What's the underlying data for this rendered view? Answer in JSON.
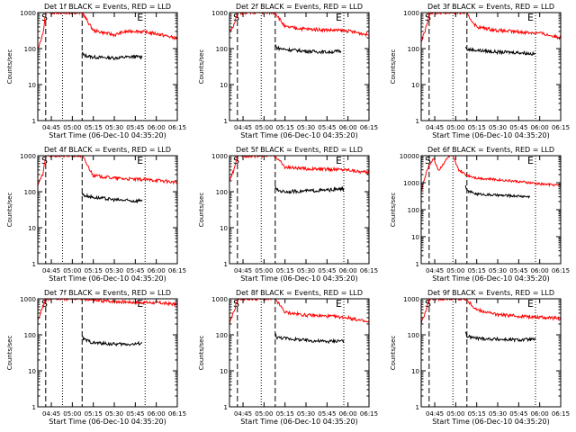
{
  "figure": {
    "xlabel": "Start Time (06-Dec-10 04:35:20)",
    "ylabel": "Counts/sec",
    "x_tick_labels": [
      "04:45",
      "05:00",
      "05:15",
      "05:30",
      "05:45",
      "06:00",
      "06:15"
    ],
    "y_tick_labels": {
      "1": "1",
      "10": "10",
      "100": "100",
      "1000": "1000",
      "10000": "10000"
    },
    "colors": {
      "events": "#000000",
      "lld": "#ff0000",
      "axes": "#000000",
      "background": "#ffffff"
    },
    "markers": {
      "start": "S",
      "end": "E"
    }
  },
  "chart_data": [
    {
      "type": "line",
      "title": "Det 1f BLACK = Events, RED = LLD",
      "ylim": [
        1,
        1000
      ],
      "xlim": [
        "04:35:20",
        "06:15"
      ],
      "series": [
        {
          "name": "Events",
          "x": [
            "05:07",
            "05:08",
            "05:15",
            "05:30",
            "05:45",
            "05:50"
          ],
          "y": [
            80,
            65,
            58,
            55,
            60,
            58
          ]
        },
        {
          "name": "LLD",
          "x": [
            "04:35:20",
            "04:39",
            "04:41",
            "05:07",
            "05:15",
            "05:30",
            "05:37",
            "05:45",
            "06:00",
            "06:15"
          ],
          "y": [
            100,
            250,
            1000,
            1000,
            320,
            240,
            290,
            310,
            260,
            190
          ]
        }
      ]
    },
    {
      "type": "line",
      "title": "Det 2f BLACK = Events, RED = LLD",
      "ylim": [
        1,
        1000
      ],
      "xlim": [
        "04:35:20",
        "06:15"
      ],
      "series": [
        {
          "name": "Events",
          "x": [
            "05:08",
            "05:09",
            "05:15",
            "05:30",
            "05:45",
            "05:55"
          ],
          "y": [
            130,
            105,
            95,
            85,
            80,
            85
          ]
        },
        {
          "name": "LLD",
          "x": [
            "04:35:20",
            "04:39",
            "04:41",
            "05:08",
            "05:15",
            "05:30",
            "05:45",
            "06:00",
            "06:15"
          ],
          "y": [
            300,
            500,
            1000,
            1000,
            400,
            350,
            330,
            310,
            240
          ]
        }
      ]
    },
    {
      "type": "line",
      "title": "Det 3f BLACK = Events, RED = LLD",
      "ylim": [
        1,
        1000
      ],
      "xlim": [
        "04:35:20",
        "06:15"
      ],
      "series": [
        {
          "name": "Events",
          "x": [
            "05:07",
            "05:08",
            "05:15",
            "05:30",
            "05:45",
            "05:57"
          ],
          "y": [
            110,
            95,
            90,
            80,
            78,
            70
          ]
        },
        {
          "name": "LLD",
          "x": [
            "04:35:20",
            "04:39",
            "04:41",
            "05:07",
            "05:15",
            "05:30",
            "05:45",
            "06:00",
            "06:15"
          ],
          "y": [
            150,
            400,
            1000,
            1000,
            400,
            320,
            290,
            270,
            200
          ]
        }
      ]
    },
    {
      "type": "line",
      "title": "Det 4f BLACK = Events, RED = LLD",
      "ylim": [
        1,
        1000
      ],
      "xlim": [
        "04:35:20",
        "06:15"
      ],
      "series": [
        {
          "name": "Events",
          "x": [
            "05:07",
            "05:08",
            "05:15",
            "05:30",
            "05:45",
            "05:50"
          ],
          "y": [
            90,
            80,
            70,
            60,
            55,
            60
          ]
        },
        {
          "name": "LLD",
          "x": [
            "04:35:20",
            "04:39",
            "04:41",
            "05:07",
            "05:15",
            "05:30",
            "05:45",
            "06:00",
            "06:15"
          ],
          "y": [
            150,
            300,
            1000,
            1000,
            280,
            240,
            220,
            210,
            180
          ]
        }
      ]
    },
    {
      "type": "line",
      "title": "Det 5f BLACK = Events, RED = LLD",
      "ylim": [
        1,
        1000
      ],
      "xlim": [
        "04:35:20",
        "06:15"
      ],
      "series": [
        {
          "name": "Events",
          "x": [
            "05:08",
            "05:09",
            "05:15",
            "05:30",
            "05:45",
            "05:57"
          ],
          "y": [
            150,
            110,
            100,
            105,
            110,
            120
          ]
        },
        {
          "name": "LLD",
          "x": [
            "04:35:20",
            "04:39",
            "04:41",
            "05:08",
            "05:15",
            "05:30",
            "05:45",
            "06:00",
            "06:15"
          ],
          "y": [
            200,
            450,
            1000,
            1000,
            480,
            430,
            420,
            410,
            330
          ]
        }
      ]
    },
    {
      "type": "line",
      "title": "Det 6f BLACK = Events, RED = LLD",
      "ylim": [
        1,
        10000
      ],
      "xlim": [
        "04:35:20",
        "06:15"
      ],
      "series": [
        {
          "name": "Events",
          "x": [
            "05:07",
            "05:08",
            "05:15",
            "05:30",
            "05:45",
            "05:53"
          ],
          "y": [
            800,
            500,
            380,
            340,
            320,
            300
          ]
        },
        {
          "name": "LLD",
          "x": [
            "04:35:20",
            "04:40",
            "04:44",
            "04:48",
            "04:52",
            "04:57",
            "05:02",
            "05:07",
            "05:15",
            "05:30",
            "05:45",
            "06:00",
            "06:15"
          ],
          "y": [
            500,
            3500,
            8000,
            2800,
            6000,
            12000,
            3000,
            2000,
            1500,
            1300,
            1100,
            900,
            800
          ]
        }
      ]
    },
    {
      "type": "line",
      "title": "Det 7f BLACK = Events, RED = LLD",
      "ylim": [
        1,
        1000
      ],
      "xlim": [
        "04:35:20",
        "06:15"
      ],
      "series": [
        {
          "name": "Events",
          "x": [
            "05:07",
            "05:08",
            "05:15",
            "05:30",
            "05:45",
            "05:50"
          ],
          "y": [
            90,
            75,
            60,
            55,
            55,
            60
          ]
        },
        {
          "name": "LLD",
          "x": [
            "04:35:20",
            "04:39",
            "04:41",
            "05:07",
            "05:15",
            "05:30",
            "05:45",
            "06:00",
            "06:15"
          ],
          "y": [
            250,
            600,
            1000,
            1000,
            900,
            850,
            800,
            780,
            700
          ]
        }
      ]
    },
    {
      "type": "line",
      "title": "Det 8f BLACK = Events, RED = LLD",
      "ylim": [
        1,
        1000
      ],
      "xlim": [
        "04:35:20",
        "06:15"
      ],
      "series": [
        {
          "name": "Events",
          "x": [
            "05:08",
            "05:09",
            "05:15",
            "05:30",
            "05:45",
            "05:57"
          ],
          "y": [
            110,
            85,
            80,
            70,
            65,
            70
          ]
        },
        {
          "name": "LLD",
          "x": [
            "04:35:20",
            "04:39",
            "04:41",
            "05:08",
            "05:15",
            "05:30",
            "05:45",
            "06:00",
            "06:15"
          ],
          "y": [
            200,
            500,
            1000,
            1000,
            420,
            350,
            330,
            300,
            220
          ]
        }
      ]
    },
    {
      "type": "line",
      "title": "Det 9f BLACK = Events, RED = LLD",
      "ylim": [
        1,
        1000
      ],
      "xlim": [
        "04:35:20",
        "06:15"
      ],
      "series": [
        {
          "name": "Events",
          "x": [
            "05:07",
            "05:08",
            "05:15",
            "05:30",
            "05:45",
            "05:57"
          ],
          "y": [
            120,
            90,
            80,
            75,
            72,
            75
          ]
        },
        {
          "name": "LLD",
          "x": [
            "04:35:20",
            "04:39",
            "04:41",
            "05:07",
            "05:15",
            "05:30",
            "05:45",
            "06:00",
            "06:15"
          ],
          "y": [
            200,
            500,
            1000,
            1000,
            500,
            360,
            330,
            310,
            280
          ]
        }
      ]
    }
  ]
}
